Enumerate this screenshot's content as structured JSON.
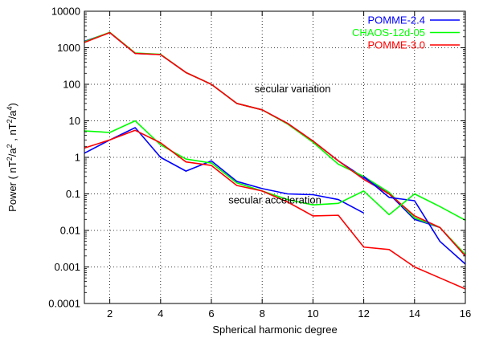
{
  "chart_data": {
    "type": "line",
    "xlabel": "Spherical harmonic degree",
    "ylabel": "Power ( nT²/a² , nT²/a⁴)",
    "ylabel_parts": {
      "a": "Power ( nT",
      "sup1": "2",
      "b": "/a",
      "sup2": "2",
      "c": " , nT",
      "sup3": "2",
      "d": "/a",
      "sup4": "4",
      "e": ")"
    },
    "y_scale": "log",
    "xlim": [
      1,
      16
    ],
    "ylim": [
      0.0001,
      10000
    ],
    "x_ticks": [
      2,
      4,
      6,
      8,
      10,
      12,
      14,
      16
    ],
    "y_ticks": [
      0.0001,
      0.001,
      0.01,
      0.1,
      1,
      10,
      100,
      1000,
      10000
    ],
    "y_tick_labels": [
      "0.0001",
      "0.001",
      "0.01",
      "0.1",
      "1",
      "10",
      "100",
      "1000",
      "10000"
    ],
    "grid": true,
    "legend_position": "top-right",
    "annotations": [
      {
        "text": "secular variation",
        "x": 9.2,
        "y": 60
      },
      {
        "text": "secular acceleration",
        "x": 8.5,
        "y": 0.055
      }
    ],
    "series": [
      {
        "name": "POMME-2.4",
        "color": "#0000ff",
        "group": "secular variation",
        "x": [
          1,
          2,
          3,
          4,
          5,
          6,
          7,
          8,
          9,
          10,
          11,
          12,
          13,
          14,
          15,
          16
        ],
        "y": [
          1500,
          2600,
          700,
          650,
          210,
          100,
          30,
          20,
          8.5,
          2.8,
          0.8,
          0.28,
          0.1,
          0.02,
          0.012,
          0.002
        ]
      },
      {
        "name": "CHAOS-12d-05",
        "color": "#00ff00",
        "group": "secular variation",
        "x": [
          1,
          2,
          3,
          4,
          5,
          6,
          7,
          8,
          9,
          10,
          11,
          12,
          13,
          14,
          15,
          16
        ],
        "y": [
          1450,
          2650,
          720,
          660,
          210,
          100,
          30,
          20,
          8.2,
          2.6,
          0.65,
          0.3,
          0.11,
          0.022,
          0.012,
          0.0022
        ]
      },
      {
        "name": "POMME-3.0",
        "color": "#ff0000",
        "group": "secular variation",
        "x": [
          1,
          2,
          3,
          4,
          5,
          6,
          7,
          8,
          9,
          10,
          11,
          12,
          13,
          14,
          15,
          16
        ],
        "y": [
          1400,
          2600,
          700,
          650,
          210,
          100,
          30,
          20,
          8.5,
          2.8,
          0.8,
          0.25,
          0.1,
          0.025,
          0.012,
          0.002
        ]
      },
      {
        "name": "POMME-2.4",
        "color": "#0000ff",
        "group": "secular acceleration",
        "x": [
          1,
          2,
          3,
          4,
          5,
          6,
          7,
          8,
          9,
          10,
          11,
          12
        ],
        "y": [
          1.3,
          3.0,
          6.5,
          1.0,
          0.42,
          0.8,
          0.22,
          0.14,
          0.1,
          0.095,
          0.07,
          0.03
        ]
      },
      {
        "name": "POMME-2.4",
        "color": "#0000ff",
        "group": "secular acceleration",
        "x": [
          12,
          13,
          14,
          15,
          16
        ],
        "y": [
          0.3,
          0.08,
          0.065,
          0.005,
          0.0012
        ]
      },
      {
        "name": "CHAOS-12d-05",
        "color": "#00ff00",
        "group": "secular acceleration",
        "x": [
          1,
          2,
          3,
          4,
          5,
          6,
          7,
          8,
          9,
          10,
          11,
          12,
          13,
          14,
          15,
          16
        ],
        "y": [
          5.3,
          4.8,
          10.0,
          2.2,
          0.9,
          0.7,
          0.2,
          0.12,
          0.07,
          0.05,
          0.055,
          0.12,
          0.027,
          0.1,
          0.045,
          0.019
        ]
      },
      {
        "name": "POMME-3.0",
        "color": "#ff0000",
        "group": "secular acceleration",
        "x": [
          1,
          2,
          3,
          4,
          5,
          6,
          7,
          8,
          9,
          10,
          11,
          12,
          13,
          14,
          15,
          16
        ],
        "y": [
          1.8,
          3.0,
          5.5,
          2.5,
          0.75,
          0.6,
          0.17,
          0.12,
          0.06,
          0.025,
          0.026,
          0.0035,
          0.003,
          0.001,
          0.0005,
          0.00025
        ]
      }
    ],
    "legend": [
      {
        "name": "POMME-2.4",
        "color": "#0000ff"
      },
      {
        "name": "CHAOS-12d-05",
        "color": "#00ff00"
      },
      {
        "name": "POMME-3.0",
        "color": "#ff0000"
      }
    ]
  }
}
